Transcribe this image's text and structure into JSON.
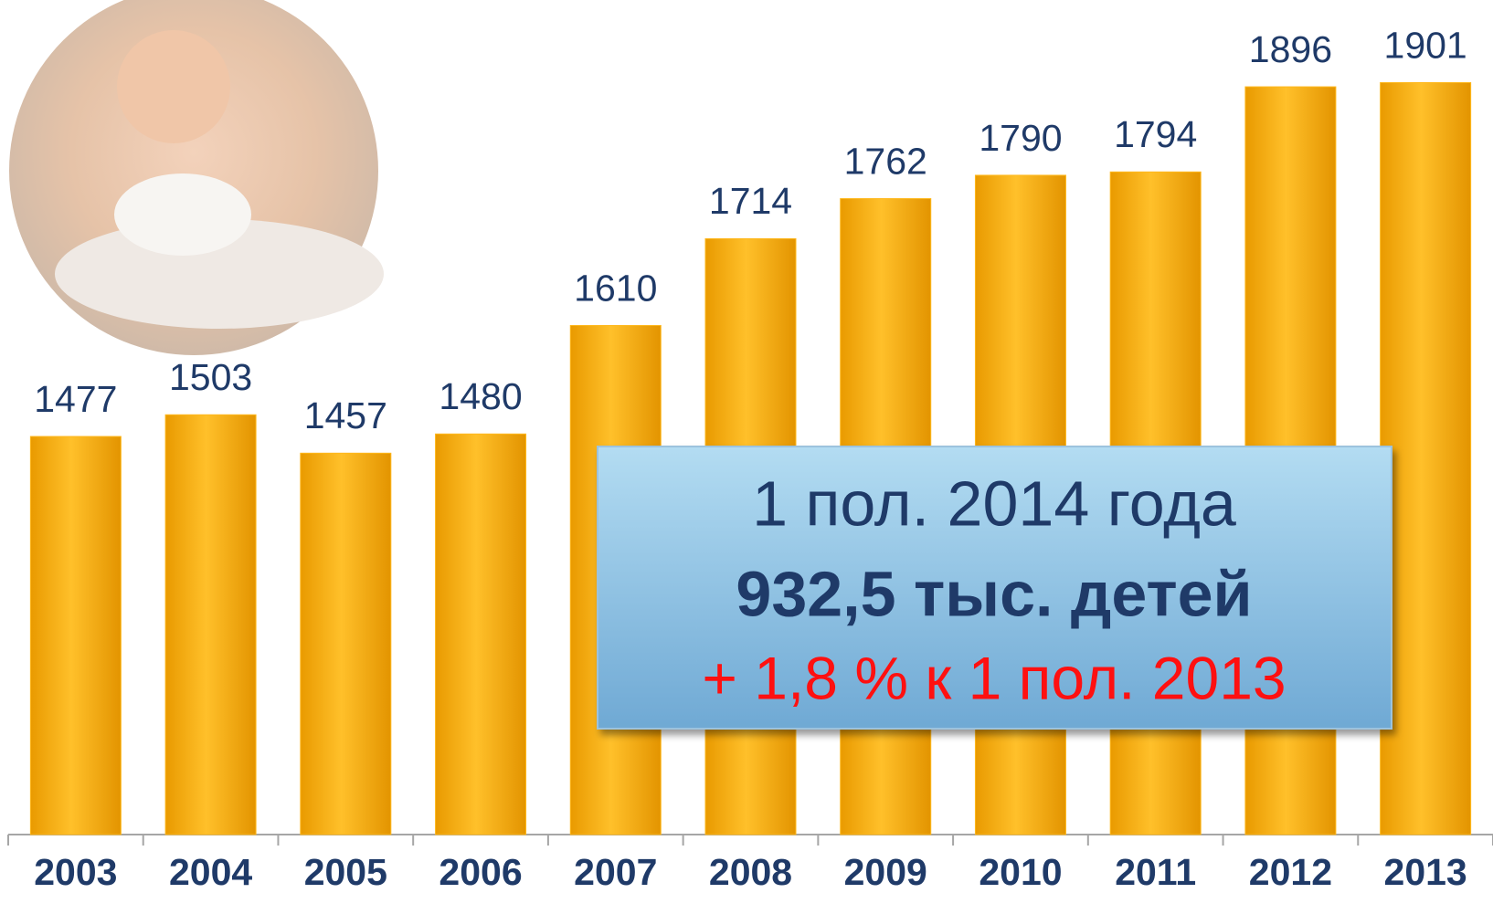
{
  "chart_data": {
    "type": "bar",
    "categories": [
      "2003",
      "2004",
      "2005",
      "2006",
      "2007",
      "2008",
      "2009",
      "2010",
      "2011",
      "2012",
      "2013"
    ],
    "values": [
      1477,
      1503,
      1457,
      1480,
      1610,
      1714,
      1762,
      1790,
      1794,
      1896,
      1901
    ],
    "color": "#ffb81c",
    "ylim": [
      1000,
      2000
    ],
    "annotations": [
      "1 пол. 2014 года",
      "932,5 тыс. детей",
      "+ 1,8 % к 1 пол. 2013"
    ]
  }
}
